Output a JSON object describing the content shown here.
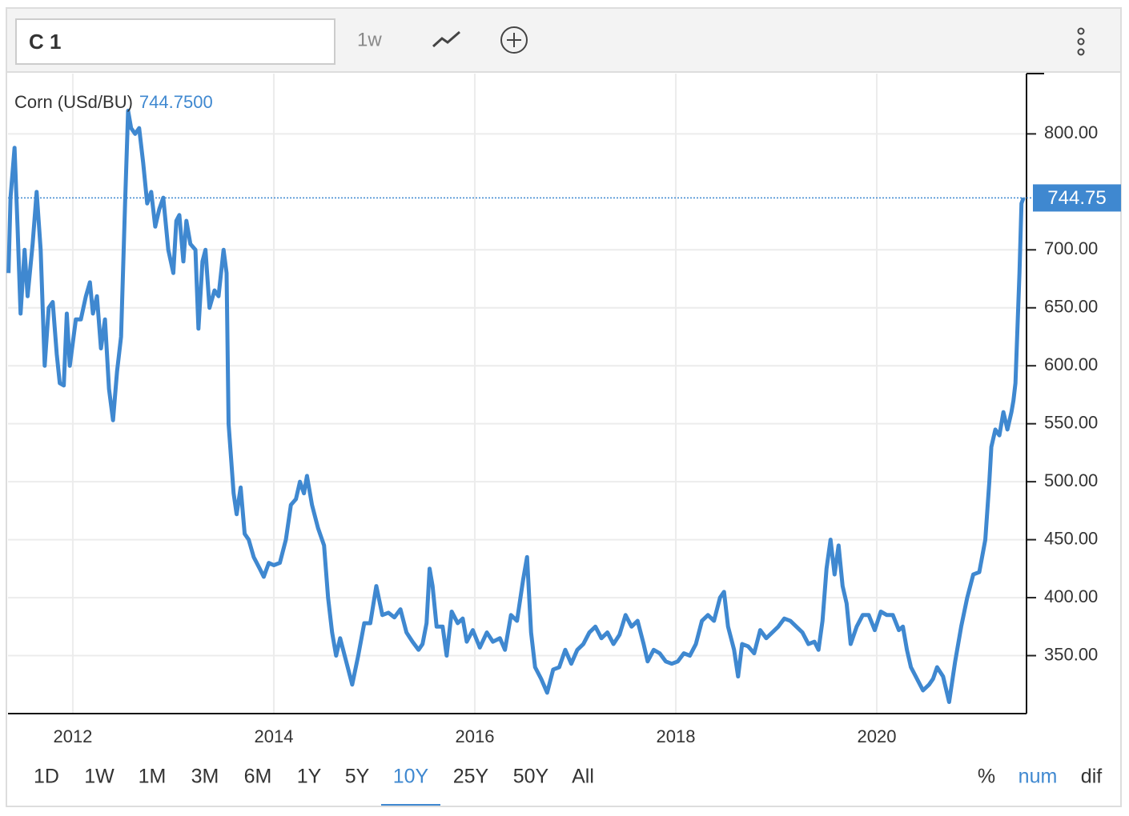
{
  "toolbar": {
    "symbol": "C 1",
    "interval": "1w"
  },
  "ranges": [
    "1D",
    "1W",
    "1M",
    "3M",
    "6M",
    "1Y",
    "5Y",
    "10Y",
    "25Y",
    "50Y",
    "All"
  ],
  "active_range": 7,
  "modes": [
    "%",
    "num",
    "dif"
  ],
  "active_mode": 1,
  "chart_data": {
    "type": "line",
    "header_value_label": "744.7500",
    "current_value": 744.75,
    "current_value_label": "744.75",
    "x": [
      2011.36,
      2011.38,
      2011.42,
      2011.45,
      2011.48,
      2011.52,
      2011.55,
      2011.6,
      2011.64,
      2011.68,
      2011.72,
      2011.76,
      2011.8,
      2011.84,
      2011.87,
      2011.91,
      2011.94,
      2011.97,
      2012.03,
      2012.08,
      2012.13,
      2012.17,
      2012.2,
      2012.24,
      2012.28,
      2012.32,
      2012.36,
      2012.4,
      2012.44,
      2012.48,
      2012.52,
      2012.55,
      2012.58,
      2012.62,
      2012.66,
      2012.7,
      2012.74,
      2012.78,
      2012.82,
      2012.86,
      2012.9,
      2012.95,
      2013.0,
      2013.03,
      2013.06,
      2013.1,
      2013.13,
      2013.17,
      2013.22,
      2013.25,
      2013.29,
      2013.32,
      2013.36,
      2013.41,
      2013.45,
      2013.5,
      2013.53,
      2013.55,
      2013.6,
      2013.63,
      2013.67,
      2013.71,
      2013.75,
      2013.8,
      2013.86,
      2013.9,
      2013.95,
      2014.0,
      2014.06,
      2014.12,
      2014.17,
      2014.22,
      2014.26,
      2014.3,
      2014.33,
      2014.38,
      2014.44,
      2014.5,
      2014.54,
      2014.58,
      2014.62,
      2014.66,
      2014.72,
      2014.78,
      2014.84,
      2014.9,
      2014.96,
      2015.02,
      2015.08,
      2015.14,
      2015.2,
      2015.26,
      2015.32,
      2015.38,
      2015.44,
      2015.48,
      2015.52,
      2015.55,
      2015.58,
      2015.62,
      2015.68,
      2015.72,
      2015.77,
      2015.83,
      2015.88,
      2015.92,
      2015.98,
      2016.05,
      2016.12,
      2016.18,
      2016.25,
      2016.3,
      2016.36,
      2016.42,
      2016.48,
      2016.52,
      2016.56,
      2016.6,
      2016.66,
      2016.72,
      2016.78,
      2016.84,
      2016.9,
      2016.96,
      2017.02,
      2017.08,
      2017.14,
      2017.2,
      2017.26,
      2017.32,
      2017.38,
      2017.44,
      2017.5,
      2017.56,
      2017.62,
      2017.68,
      2017.72,
      2017.78,
      2017.84,
      2017.9,
      2017.96,
      2018.02,
      2018.08,
      2018.14,
      2018.2,
      2018.26,
      2018.32,
      2018.38,
      2018.44,
      2018.48,
      2018.52,
      2018.58,
      2018.62,
      2018.66,
      2018.72,
      2018.78,
      2018.84,
      2018.9,
      2018.96,
      2019.02,
      2019.08,
      2019.14,
      2019.2,
      2019.26,
      2019.32,
      2019.38,
      2019.42,
      2019.46,
      2019.5,
      2019.54,
      2019.58,
      2019.62,
      2019.66,
      2019.7,
      2019.74,
      2019.8,
      2019.86,
      2019.92,
      2019.98,
      2020.04,
      2020.1,
      2020.16,
      2020.22,
      2020.26,
      2020.3,
      2020.34,
      2020.4,
      2020.46,
      2020.52,
      2020.56,
      2020.6,
      2020.66,
      2020.72,
      2020.78,
      2020.84,
      2020.9,
      2020.96,
      2021.02,
      2021.08,
      2021.12,
      2021.14,
      2021.18,
      2021.22,
      2021.26,
      2021.3,
      2021.34,
      2021.36,
      2021.38,
      2021.42,
      2021.44,
      2021.46
    ],
    "series": [
      {
        "name": "Corn (USd/BU)",
        "color": "#3f88d0",
        "values": [
          680,
          745,
          788,
          720,
          645,
          700,
          660,
          705,
          750,
          700,
          600,
          650,
          655,
          610,
          585,
          583,
          645,
          600,
          640,
          640,
          660,
          672,
          645,
          660,
          615,
          640,
          580,
          553,
          595,
          625,
          740,
          820,
          805,
          800,
          805,
          775,
          740,
          750,
          720,
          735,
          745,
          700,
          680,
          725,
          730,
          690,
          725,
          705,
          700,
          632,
          690,
          700,
          650,
          665,
          660,
          700,
          680,
          550,
          490,
          472,
          495,
          455,
          450,
          435,
          425,
          418,
          430,
          428,
          430,
          450,
          480,
          485,
          500,
          490,
          505,
          480,
          460,
          445,
          400,
          370,
          350,
          365,
          345,
          325,
          350,
          378,
          378,
          410,
          385,
          387,
          383,
          390,
          370,
          362,
          355,
          360,
          378,
          425,
          410,
          375,
          375,
          350,
          388,
          378,
          382,
          362,
          372,
          357,
          370,
          362,
          365,
          355,
          385,
          380,
          415,
          435,
          370,
          340,
          330,
          318,
          338,
          340,
          355,
          343,
          355,
          360,
          370,
          375,
          365,
          370,
          360,
          368,
          385,
          375,
          380,
          360,
          345,
          355,
          352,
          345,
          343,
          345,
          352,
          350,
          360,
          380,
          385,
          380,
          400,
          405,
          375,
          355,
          332,
          360,
          358,
          352,
          372,
          365,
          370,
          375,
          382,
          380,
          375,
          370,
          360,
          362,
          355,
          380,
          425,
          450,
          420,
          445,
          410,
          395,
          360,
          375,
          385,
          385,
          372,
          388,
          385,
          385,
          372,
          375,
          355,
          340,
          330,
          320,
          325,
          330,
          340,
          332,
          310,
          345,
          375,
          400,
          420,
          422,
          450,
          500,
          530,
          545,
          540,
          560,
          545,
          560,
          570,
          585,
          680,
          740,
          744.75
        ]
      }
    ],
    "xlim": [
      2011.355,
      2021.49
    ],
    "xticks": [
      2012,
      2014,
      2016,
      2018,
      2020
    ],
    "ylim": [
      300,
      852
    ],
    "yticks": [
      {
        "value": 350,
        "label": "350.00"
      },
      {
        "value": 400,
        "label": "400.00"
      },
      {
        "value": 450,
        "label": "450.00"
      },
      {
        "value": 500,
        "label": "500.00"
      },
      {
        "value": 550,
        "label": "550.00"
      },
      {
        "value": 600,
        "label": "600.00"
      },
      {
        "value": 650,
        "label": "650.00"
      },
      {
        "value": 700,
        "label": "700.00"
      },
      {
        "value": 800,
        "label": "800.00"
      }
    ],
    "grid": true
  }
}
